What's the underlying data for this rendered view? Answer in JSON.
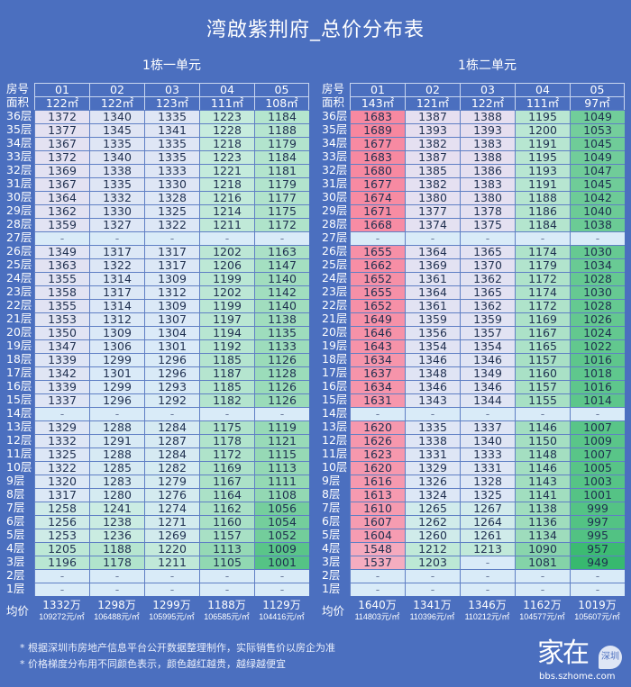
{
  "title": "湾啟紫荆府_总价分布表",
  "row_labels": {
    "room": "房号",
    "area": "面积",
    "avg": "均价"
  },
  "color_scale": {
    "empty": "#d9ebf8",
    "stops": [
      [
        949,
        "#37b96f"
      ],
      [
        1100,
        "#8fd7b0"
      ],
      [
        1230,
        "#c8ecdf"
      ],
      [
        1300,
        "#daeaf8"
      ],
      [
        1390,
        "#e6dff0"
      ],
      [
        1500,
        "#f4b6c8"
      ],
      [
        1690,
        "#f7879f"
      ]
    ]
  },
  "tables": [
    {
      "name": "1栋一单元",
      "rooms": [
        "01",
        "02",
        "03",
        "04",
        "05"
      ],
      "areas": [
        "122㎡",
        "122㎡",
        "123㎡",
        "111㎡",
        "108㎡"
      ],
      "rows": [
        {
          "floor": "36层",
          "v": [
            "1372",
            "1340",
            "1335",
            "1223",
            "1184"
          ]
        },
        {
          "floor": "35层",
          "v": [
            "1377",
            "1345",
            "1341",
            "1228",
            "1188"
          ]
        },
        {
          "floor": "34层",
          "v": [
            "1367",
            "1335",
            "1335",
            "1218",
            "1179"
          ]
        },
        {
          "floor": "33层",
          "v": [
            "1372",
            "1340",
            "1335",
            "1223",
            "1184"
          ]
        },
        {
          "floor": "32层",
          "v": [
            "1369",
            "1338",
            "1333",
            "1221",
            "1181"
          ]
        },
        {
          "floor": "31层",
          "v": [
            "1367",
            "1335",
            "1330",
            "1218",
            "1179"
          ]
        },
        {
          "floor": "30层",
          "v": [
            "1364",
            "1332",
            "1328",
            "1216",
            "1177"
          ]
        },
        {
          "floor": "29层",
          "v": [
            "1362",
            "1330",
            "1325",
            "1214",
            "1175"
          ]
        },
        {
          "floor": "28层",
          "v": [
            "1359",
            "1327",
            "1322",
            "1211",
            "1172"
          ]
        },
        {
          "floor": "27层",
          "v": [
            "-",
            "-",
            "-",
            "-",
            "-"
          ]
        },
        {
          "floor": "26层",
          "v": [
            "1349",
            "1317",
            "1317",
            "1202",
            "1163"
          ]
        },
        {
          "floor": "25层",
          "v": [
            "1363",
            "1322",
            "1317",
            "1206",
            "1147"
          ]
        },
        {
          "floor": "24层",
          "v": [
            "1355",
            "1314",
            "1309",
            "1199",
            "1140"
          ]
        },
        {
          "floor": "23层",
          "v": [
            "1358",
            "1317",
            "1312",
            "1202",
            "1142"
          ]
        },
        {
          "floor": "22层",
          "v": [
            "1355",
            "1314",
            "1309",
            "1199",
            "1140"
          ]
        },
        {
          "floor": "21层",
          "v": [
            "1353",
            "1312",
            "1307",
            "1197",
            "1138"
          ]
        },
        {
          "floor": "20层",
          "v": [
            "1350",
            "1309",
            "1304",
            "1194",
            "1135"
          ]
        },
        {
          "floor": "19层",
          "v": [
            "1347",
            "1306",
            "1301",
            "1192",
            "1133"
          ]
        },
        {
          "floor": "18层",
          "v": [
            "1339",
            "1299",
            "1296",
            "1185",
            "1126"
          ]
        },
        {
          "floor": "17层",
          "v": [
            "1342",
            "1301",
            "1296",
            "1187",
            "1128"
          ]
        },
        {
          "floor": "16层",
          "v": [
            "1339",
            "1299",
            "1293",
            "1185",
            "1126"
          ]
        },
        {
          "floor": "15层",
          "v": [
            "1337",
            "1296",
            "1292",
            "1182",
            "1126"
          ]
        },
        {
          "floor": "14层",
          "v": [
            "-",
            "-",
            "-",
            "-",
            "-"
          ]
        },
        {
          "floor": "13层",
          "v": [
            "1329",
            "1288",
            "1284",
            "1175",
            "1119"
          ]
        },
        {
          "floor": "12层",
          "v": [
            "1332",
            "1291",
            "1287",
            "1178",
            "1121"
          ]
        },
        {
          "floor": "11层",
          "v": [
            "1325",
            "1288",
            "1284",
            "1172",
            "1115"
          ]
        },
        {
          "floor": "10层",
          "v": [
            "1322",
            "1285",
            "1282",
            "1169",
            "1113"
          ]
        },
        {
          "floor": "9层",
          "v": [
            "1320",
            "1283",
            "1279",
            "1167",
            "1111"
          ]
        },
        {
          "floor": "8层",
          "v": [
            "1317",
            "1280",
            "1276",
            "1164",
            "1108"
          ]
        },
        {
          "floor": "7层",
          "v": [
            "1258",
            "1241",
            "1274",
            "1162",
            "1056"
          ]
        },
        {
          "floor": "6层",
          "v": [
            "1256",
            "1238",
            "1271",
            "1160",
            "1054"
          ]
        },
        {
          "floor": "5层",
          "v": [
            "1253",
            "1236",
            "1269",
            "1157",
            "1052"
          ]
        },
        {
          "floor": "4层",
          "v": [
            "1205",
            "1188",
            "1220",
            "1113",
            "1009"
          ]
        },
        {
          "floor": "3层",
          "v": [
            "1196",
            "1178",
            "1211",
            "1105",
            "1001"
          ]
        },
        {
          "floor": "2层",
          "v": [
            "-",
            "-",
            "-",
            "-",
            "-"
          ]
        },
        {
          "floor": "1层",
          "v": [
            "-",
            "-",
            "-",
            "-",
            "-"
          ]
        }
      ],
      "avg_total": [
        "1332万",
        "1298万",
        "1299万",
        "1188万",
        "1129万"
      ],
      "avg_unit": [
        "109272元/㎡",
        "106488元/㎡",
        "105995元/㎡",
        "106585元/㎡",
        "104416元/㎡"
      ]
    },
    {
      "name": "1栋二单元",
      "rooms": [
        "01",
        "02",
        "03",
        "04",
        "05"
      ],
      "areas": [
        "143㎡",
        "121㎡",
        "122㎡",
        "111㎡",
        "97㎡"
      ],
      "rows": [
        {
          "floor": "36层",
          "v": [
            "1683",
            "1387",
            "1388",
            "1195",
            "1049"
          ]
        },
        {
          "floor": "35层",
          "v": [
            "1689",
            "1393",
            "1393",
            "1200",
            "1053"
          ]
        },
        {
          "floor": "34层",
          "v": [
            "1677",
            "1382",
            "1383",
            "1191",
            "1045"
          ]
        },
        {
          "floor": "33层",
          "v": [
            "1683",
            "1387",
            "1388",
            "1195",
            "1049"
          ]
        },
        {
          "floor": "32层",
          "v": [
            "1680",
            "1385",
            "1386",
            "1193",
            "1047"
          ]
        },
        {
          "floor": "31层",
          "v": [
            "1677",
            "1382",
            "1383",
            "1191",
            "1045"
          ]
        },
        {
          "floor": "30层",
          "v": [
            "1674",
            "1380",
            "1380",
            "1188",
            "1042"
          ]
        },
        {
          "floor": "29层",
          "v": [
            "1671",
            "1377",
            "1378",
            "1186",
            "1040"
          ]
        },
        {
          "floor": "28层",
          "v": [
            "1668",
            "1374",
            "1375",
            "1184",
            "1038"
          ]
        },
        {
          "floor": "27层",
          "v": [
            "-",
            "-",
            "-",
            "-",
            "-"
          ]
        },
        {
          "floor": "26层",
          "v": [
            "1655",
            "1364",
            "1365",
            "1174",
            "1030"
          ]
        },
        {
          "floor": "25层",
          "v": [
            "1662",
            "1369",
            "1370",
            "1179",
            "1034"
          ]
        },
        {
          "floor": "24层",
          "v": [
            "1652",
            "1361",
            "1362",
            "1172",
            "1028"
          ]
        },
        {
          "floor": "23层",
          "v": [
            "1655",
            "1364",
            "1365",
            "1174",
            "1030"
          ]
        },
        {
          "floor": "22层",
          "v": [
            "1652",
            "1361",
            "1362",
            "1172",
            "1028"
          ]
        },
        {
          "floor": "21层",
          "v": [
            "1649",
            "1359",
            "1359",
            "1169",
            "1026"
          ]
        },
        {
          "floor": "20层",
          "v": [
            "1646",
            "1356",
            "1357",
            "1167",
            "1024"
          ]
        },
        {
          "floor": "19层",
          "v": [
            "1643",
            "1354",
            "1354",
            "1165",
            "1022"
          ]
        },
        {
          "floor": "18层",
          "v": [
            "1634",
            "1346",
            "1346",
            "1157",
            "1016"
          ]
        },
        {
          "floor": "17层",
          "v": [
            "1637",
            "1348",
            "1349",
            "1160",
            "1018"
          ]
        },
        {
          "floor": "16层",
          "v": [
            "1634",
            "1346",
            "1346",
            "1157",
            "1016"
          ]
        },
        {
          "floor": "15层",
          "v": [
            "1631",
            "1343",
            "1344",
            "1155",
            "1014"
          ]
        },
        {
          "floor": "14层",
          "v": [
            "-",
            "-",
            "-",
            "-",
            "-"
          ]
        },
        {
          "floor": "13层",
          "v": [
            "1620",
            "1335",
            "1337",
            "1146",
            "1007"
          ]
        },
        {
          "floor": "12层",
          "v": [
            "1626",
            "1338",
            "1340",
            "1150",
            "1009"
          ]
        },
        {
          "floor": "11层",
          "v": [
            "1623",
            "1331",
            "1333",
            "1148",
            "1007"
          ]
        },
        {
          "floor": "10层",
          "v": [
            "1620",
            "1329",
            "1331",
            "1146",
            "1005"
          ]
        },
        {
          "floor": "9层",
          "v": [
            "1616",
            "1326",
            "1328",
            "1143",
            "1003"
          ]
        },
        {
          "floor": "8层",
          "v": [
            "1613",
            "1324",
            "1325",
            "1141",
            "1001"
          ]
        },
        {
          "floor": "7层",
          "v": [
            "1610",
            "1265",
            "1267",
            "1138",
            "999"
          ]
        },
        {
          "floor": "6层",
          "v": [
            "1607",
            "1262",
            "1264",
            "1136",
            "997"
          ]
        },
        {
          "floor": "5层",
          "v": [
            "1604",
            "1260",
            "1261",
            "1134",
            "995"
          ]
        },
        {
          "floor": "4层",
          "v": [
            "1548",
            "1212",
            "1213",
            "1090",
            "957"
          ]
        },
        {
          "floor": "3层",
          "v": [
            "1537",
            "1203",
            "-",
            "1081",
            "949"
          ]
        },
        {
          "floor": "2层",
          "v": [
            "-",
            "-",
            "-",
            "-",
            "-"
          ]
        },
        {
          "floor": "1层",
          "v": [
            "-",
            "-",
            "-",
            "-",
            "-"
          ]
        }
      ],
      "avg_total": [
        "1640万",
        "1341万",
        "1346万",
        "1162万",
        "1019万"
      ],
      "avg_unit": [
        "114803元/㎡",
        "110396元/㎡",
        "110212元/㎡",
        "104577元/㎡",
        "105607元/㎡"
      ]
    }
  ],
  "notes": [
    "* 根据深圳市房地产信息平台公开数据整理制作，实际销售价以房企为准",
    "* 价格梯度分布用不同颜色表示，颜色越红越贵，越绿越便宜"
  ],
  "logo": {
    "main": "家在",
    "badge": "深圳",
    "url": "bbs.szhome.com"
  }
}
